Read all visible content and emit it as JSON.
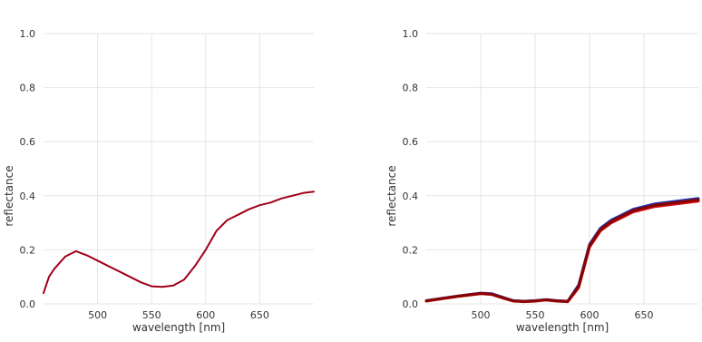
{
  "chart_data": [
    {
      "type": "line",
      "xlabel": "wavelength [nm]",
      "ylabel": "reflectance",
      "xlim": [
        450,
        700
      ],
      "ylim": [
        0,
        1.0
      ],
      "xticks": [
        500,
        550,
        600,
        650
      ],
      "yticks": [
        "0.0",
        "0.2",
        "0.4",
        "0.6",
        "0.8",
        "1.0"
      ],
      "grid": true,
      "series": [
        {
          "color": "#a0001a",
          "x": [
            450,
            455,
            460,
            470,
            480,
            490,
            500,
            510,
            520,
            530,
            540,
            550,
            560,
            570,
            580,
            590,
            600,
            610,
            620,
            630,
            640,
            650,
            660,
            670,
            680,
            690,
            700
          ],
          "y": [
            0.04,
            0.1,
            0.13,
            0.175,
            0.195,
            0.18,
            0.16,
            0.14,
            0.12,
            0.1,
            0.08,
            0.065,
            0.063,
            0.068,
            0.09,
            0.14,
            0.2,
            0.27,
            0.31,
            0.33,
            0.35,
            0.365,
            0.375,
            0.39,
            0.4,
            0.41,
            0.415
          ]
        }
      ]
    },
    {
      "type": "line",
      "xlabel": "wavelength [nm]",
      "ylabel": "reflectance",
      "xlim": [
        450,
        700
      ],
      "ylim": [
        0,
        1.0
      ],
      "xticks": [
        500,
        550,
        600,
        650
      ],
      "yticks": [
        "0.0",
        "0.2",
        "0.4",
        "0.6",
        "0.8",
        "1.0"
      ],
      "grid": true,
      "series": [
        {
          "color": "#2233aa",
          "x": [
            450,
            460,
            470,
            480,
            490,
            500,
            510,
            520,
            530,
            540,
            550,
            560,
            570,
            580,
            590,
            600,
            610,
            620,
            630,
            640,
            650,
            660,
            670,
            680,
            690,
            700
          ],
          "y": [
            0.012,
            0.018,
            0.024,
            0.03,
            0.035,
            0.04,
            0.038,
            0.025,
            0.012,
            0.01,
            0.012,
            0.016,
            0.012,
            0.01,
            0.07,
            0.22,
            0.28,
            0.31,
            0.33,
            0.35,
            0.36,
            0.37,
            0.375,
            0.38,
            0.385,
            0.39
          ]
        },
        {
          "color": "#cc1111",
          "x": [
            450,
            460,
            470,
            480,
            490,
            500,
            510,
            520,
            530,
            540,
            550,
            560,
            570,
            580,
            590,
            600,
            610,
            620,
            630,
            640,
            650,
            660,
            670,
            680,
            690,
            700
          ],
          "y": [
            0.01,
            0.016,
            0.022,
            0.028,
            0.033,
            0.038,
            0.035,
            0.022,
            0.01,
            0.008,
            0.01,
            0.014,
            0.01,
            0.008,
            0.06,
            0.21,
            0.27,
            0.3,
            0.32,
            0.34,
            0.35,
            0.36,
            0.365,
            0.37,
            0.375,
            0.38
          ]
        },
        {
          "color": "#8b0000",
          "x": [
            450,
            460,
            470,
            480,
            490,
            500,
            510,
            520,
            530,
            540,
            550,
            560,
            570,
            580,
            590,
            600,
            610,
            620,
            630,
            640,
            650,
            660,
            670,
            680,
            690,
            700
          ],
          "y": [
            0.011,
            0.017,
            0.023,
            0.029,
            0.034,
            0.039,
            0.036,
            0.023,
            0.011,
            0.009,
            0.011,
            0.015,
            0.011,
            0.009,
            0.065,
            0.215,
            0.275,
            0.305,
            0.325,
            0.345,
            0.355,
            0.365,
            0.37,
            0.375,
            0.38,
            0.385
          ]
        }
      ]
    }
  ]
}
